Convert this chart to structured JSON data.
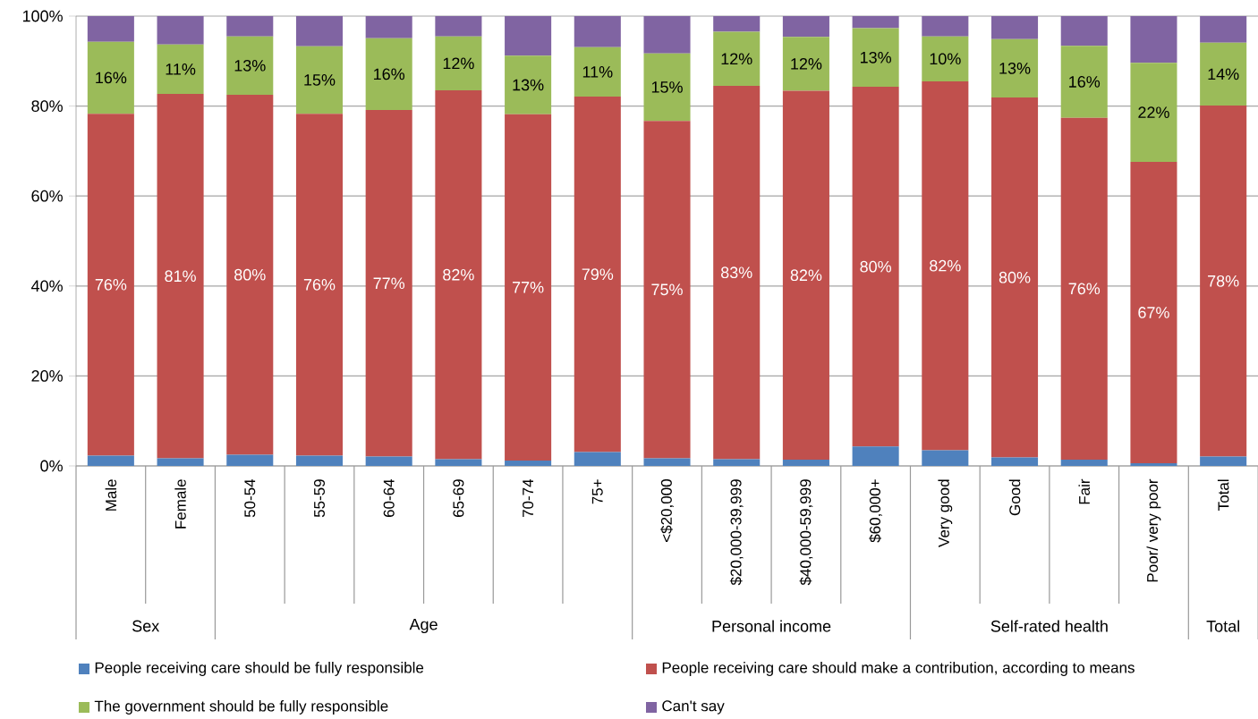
{
  "chart_data": {
    "type": "bar",
    "stacked": true,
    "grid": "y",
    "legend": "bottom",
    "categories": [
      "Male",
      "Female",
      "50-54",
      "55-59",
      "60-64",
      "65-69",
      "70-74",
      "75+",
      "<$20,000",
      "$20,000-39,999",
      "$40,000-59,999",
      "$60,000+",
      "Very good",
      "Good",
      "Fair",
      "Poor/ very poor",
      "Total"
    ],
    "annotations": [
      "Sex",
      "Age",
      "Personal income",
      "Self-rated health",
      "Total"
    ],
    "ylim": [
      0,
      100
    ],
    "yticks": [
      {
        "value": 0,
        "label": "0%"
      },
      {
        "value": 20,
        "label": "20%"
      },
      {
        "value": 40,
        "label": "40%"
      },
      {
        "value": 60,
        "label": "60%"
      },
      {
        "value": 80,
        "label": "80%"
      },
      {
        "value": 100,
        "label": "100%"
      }
    ],
    "series": [
      {
        "name": "People receiving care should be fully responsible",
        "color": "#4f81bd",
        "values": [
          2.3,
          1.7,
          2.5,
          2.3,
          2.1,
          1.5,
          1.2,
          3.1,
          1.7,
          1.5,
          1.4,
          4.3,
          3.5,
          1.9,
          1.4,
          0.6,
          2.1
        ]
      },
      {
        "name": "People receiving care should make a contribution, according to means",
        "color": "#c0504d",
        "values": [
          76,
          81,
          80,
          76,
          77,
          82,
          77,
          79,
          75,
          83,
          82,
          80,
          82,
          80,
          76,
          67,
          78
        ],
        "value_labels": [
          "76%",
          "81%",
          "80%",
          "76%",
          "77%",
          "82%",
          "77%",
          "79%",
          "75%",
          "83%",
          "82%",
          "80%",
          "82%",
          "80%",
          "76%",
          "67%",
          "78%"
        ]
      },
      {
        "name": "The government should be fully responsible",
        "color": "#9bbb59",
        "values": [
          16,
          11,
          13,
          15,
          16,
          12,
          13,
          11,
          15,
          12,
          12,
          13,
          10,
          13,
          16,
          22,
          14
        ],
        "value_labels": [
          "16%",
          "11%",
          "13%",
          "15%",
          "16%",
          "12%",
          "13%",
          "11%",
          "15%",
          "12%",
          "12%",
          "13%",
          "10%",
          "13%",
          "16%",
          "22%",
          "14%"
        ]
      },
      {
        "name": "Can't say",
        "color": "#8064a2",
        "values": [
          5.7,
          6.3,
          4.5,
          6.7,
          4.9,
          4.5,
          8.8,
          6.9,
          8.3,
          3.5,
          4.6,
          2.7,
          4.5,
          5.1,
          6.6,
          10.4,
          5.9
        ]
      }
    ]
  }
}
